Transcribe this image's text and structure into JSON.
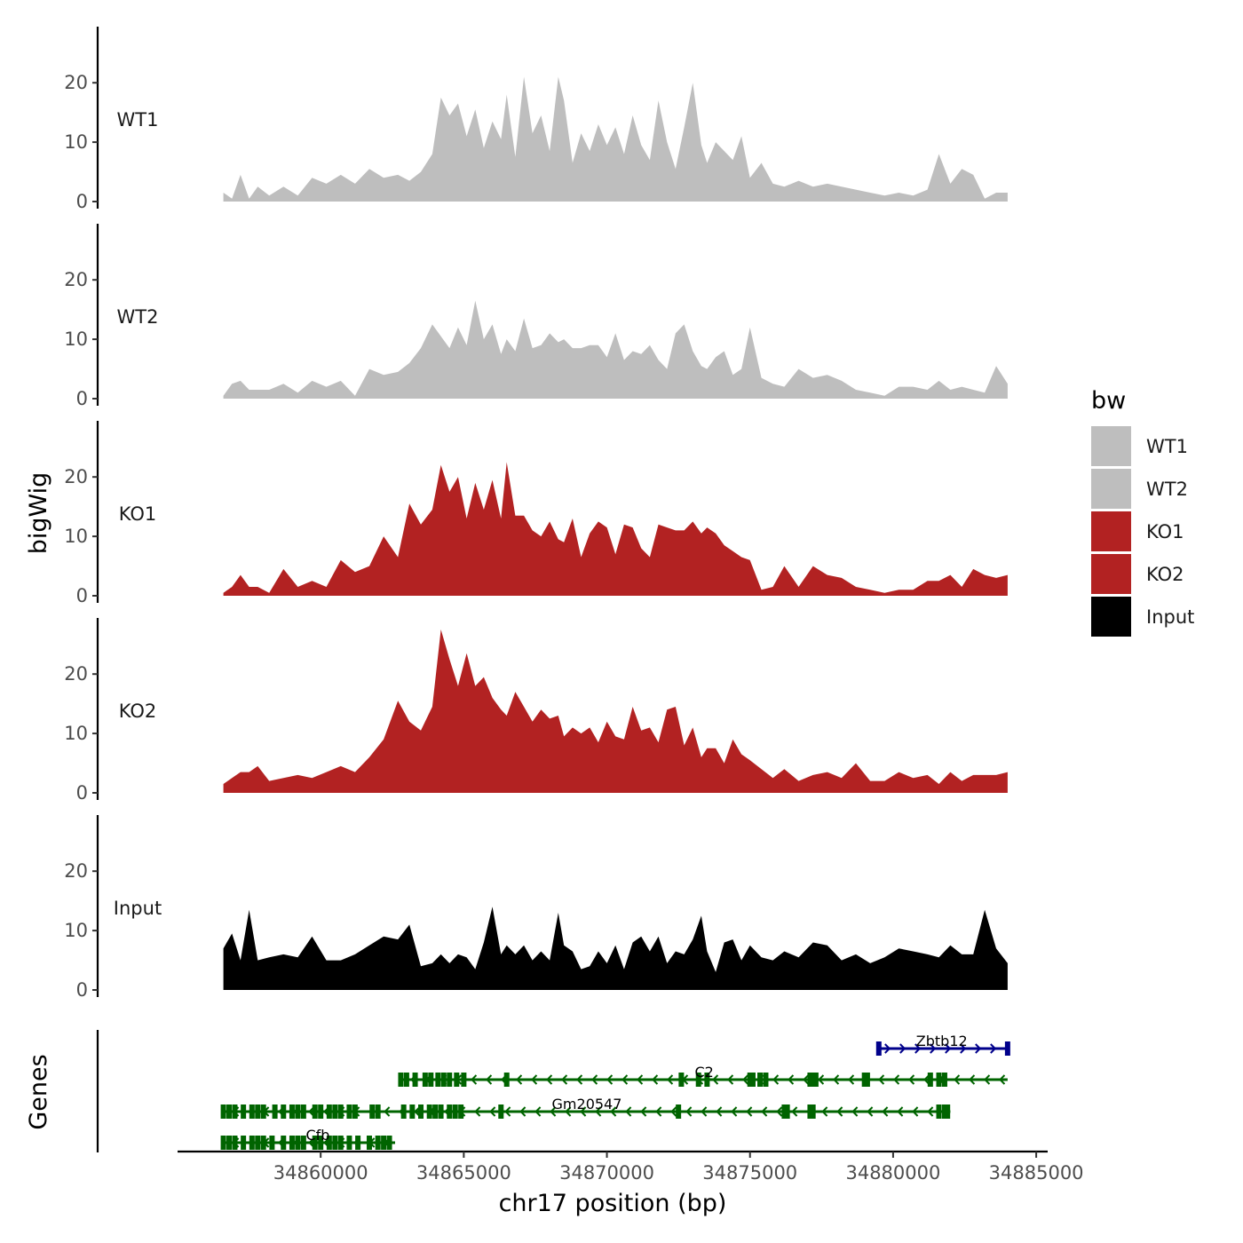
{
  "chart_data": {
    "type": "area",
    "ylabel": "bigWig",
    "genes_label": "Genes",
    "xlabel": "chr17 position (bp)",
    "xlim": [
      34855000,
      34885400
    ],
    "ylim": [
      0,
      29
    ],
    "x_ticks": [
      34860000,
      34865000,
      34870000,
      34875000,
      34880000,
      34885000
    ],
    "x_tick_labels": [
      "34860000",
      "34865000",
      "34870000",
      "34875000",
      "34880000",
      "34885000"
    ],
    "y_ticks": [
      0,
      10,
      20
    ],
    "y_tick_labels": [
      "0",
      "10",
      "20"
    ],
    "legend": {
      "title": "bw",
      "entries": [
        {
          "label": "WT1",
          "color": "#bebebe"
        },
        {
          "label": "WT2",
          "color": "#bebebe"
        },
        {
          "label": "KO1",
          "color": "#b22222"
        },
        {
          "label": "KO2",
          "color": "#b22222"
        },
        {
          "label": "Input",
          "color": "#000000"
        }
      ]
    },
    "series": [
      {
        "name": "WT1",
        "color": "#bebebe",
        "x": [
          34856600,
          34856900,
          34857200,
          34857500,
          34857800,
          34858200,
          34858700,
          34859200,
          34859700,
          34860200,
          34860700,
          34861200,
          34861700,
          34862200,
          34862700,
          34863100,
          34863500,
          34863900,
          34864200,
          34864500,
          34864800,
          34865100,
          34865400,
          34865700,
          34866000,
          34866300,
          34866500,
          34866800,
          34867100,
          34867400,
          34867700,
          34868000,
          34868300,
          34868500,
          34868800,
          34869100,
          34869400,
          34869700,
          34870000,
          34870300,
          34870600,
          34870900,
          34871200,
          34871500,
          34871800,
          34872100,
          34872400,
          34872700,
          34873000,
          34873300,
          34873500,
          34873800,
          34874100,
          34874400,
          34874700,
          34875000,
          34875400,
          34875800,
          34876200,
          34876700,
          34877200,
          34877700,
          34878200,
          34878700,
          34879200,
          34879700,
          34880200,
          34880700,
          34881200,
          34881600,
          34882000,
          34882400,
          34882800,
          34883200,
          34883600,
          34884000
        ],
        "y": [
          1.5,
          0.5,
          4.5,
          0.5,
          2.5,
          1.0,
          2.5,
          1.0,
          4.0,
          3.0,
          4.5,
          3.0,
          5.5,
          4.0,
          4.5,
          3.5,
          5.0,
          8.0,
          17.5,
          14.5,
          16.5,
          11.0,
          15.5,
          9.0,
          13.5,
          10.5,
          18.0,
          7.5,
          21.0,
          11.5,
          14.5,
          8.5,
          21.0,
          17.0,
          6.5,
          11.5,
          8.5,
          13.0,
          9.5,
          12.5,
          8.0,
          14.5,
          9.5,
          7.0,
          17.0,
          10.0,
          5.5,
          12.5,
          20.0,
          9.5,
          6.5,
          10.0,
          8.5,
          7.0,
          11.0,
          4.0,
          6.5,
          3.0,
          2.5,
          3.5,
          2.5,
          3.0,
          2.5,
          2.0,
          1.5,
          1.0,
          1.5,
          1.0,
          2.0,
          8.0,
          3.0,
          5.5,
          4.5,
          0.5,
          1.5,
          1.5
        ]
      },
      {
        "name": "WT2",
        "color": "#bebebe",
        "x": [
          34856600,
          34856900,
          34857200,
          34857500,
          34857800,
          34858200,
          34858700,
          34859200,
          34859700,
          34860200,
          34860700,
          34861200,
          34861700,
          34862200,
          34862700,
          34863100,
          34863500,
          34863900,
          34864200,
          34864500,
          34864800,
          34865100,
          34865400,
          34865700,
          34866000,
          34866300,
          34866500,
          34866800,
          34867100,
          34867400,
          34867700,
          34868000,
          34868300,
          34868500,
          34868800,
          34869100,
          34869400,
          34869700,
          34870000,
          34870300,
          34870600,
          34870900,
          34871200,
          34871500,
          34871800,
          34872100,
          34872400,
          34872700,
          34873000,
          34873300,
          34873500,
          34873800,
          34874100,
          34874400,
          34874700,
          34875000,
          34875400,
          34875800,
          34876200,
          34876700,
          34877200,
          34877700,
          34878200,
          34878700,
          34879200,
          34879700,
          34880200,
          34880700,
          34881200,
          34881600,
          34882000,
          34882400,
          34882800,
          34883200,
          34883600,
          34884000
        ],
        "y": [
          0.5,
          2.5,
          3.0,
          1.5,
          1.5,
          1.5,
          2.5,
          1.0,
          3.0,
          2.0,
          3.0,
          0.5,
          5.0,
          4.0,
          4.5,
          6.0,
          8.5,
          12.5,
          10.5,
          8.5,
          12.0,
          9.0,
          16.5,
          10.0,
          12.5,
          7.5,
          10.0,
          8.0,
          13.5,
          8.5,
          9.0,
          11.0,
          9.5,
          10.0,
          8.5,
          8.5,
          9.0,
          9.0,
          7.0,
          11.0,
          6.5,
          8.0,
          7.5,
          9.0,
          6.5,
          5.0,
          11.0,
          12.5,
          8.0,
          5.5,
          5.0,
          7.0,
          8.0,
          4.0,
          5.0,
          12.0,
          3.5,
          2.5,
          2.0,
          5.0,
          3.5,
          4.0,
          3.0,
          1.5,
          1.0,
          0.5,
          2.0,
          2.0,
          1.5,
          3.0,
          1.5,
          2.0,
          1.5,
          1.0,
          5.5,
          2.5
        ]
      },
      {
        "name": "KO1",
        "color": "#b22222",
        "x": [
          34856600,
          34856900,
          34857200,
          34857500,
          34857800,
          34858200,
          34858700,
          34859200,
          34859700,
          34860200,
          34860700,
          34861200,
          34861700,
          34862200,
          34862700,
          34863100,
          34863500,
          34863900,
          34864200,
          34864500,
          34864800,
          34865100,
          34865400,
          34865700,
          34866000,
          34866300,
          34866500,
          34866800,
          34867100,
          34867400,
          34867700,
          34868000,
          34868300,
          34868500,
          34868800,
          34869100,
          34869400,
          34869700,
          34870000,
          34870300,
          34870600,
          34870900,
          34871200,
          34871500,
          34871800,
          34872100,
          34872400,
          34872700,
          34873000,
          34873300,
          34873500,
          34873800,
          34874100,
          34874400,
          34874700,
          34875000,
          34875400,
          34875800,
          34876200,
          34876700,
          34877200,
          34877700,
          34878200,
          34878700,
          34879200,
          34879700,
          34880200,
          34880700,
          34881200,
          34881600,
          34882000,
          34882400,
          34882800,
          34883200,
          34883600,
          34884000
        ],
        "y": [
          0.5,
          1.5,
          3.5,
          1.5,
          1.5,
          0.5,
          4.5,
          1.5,
          2.5,
          1.5,
          6.0,
          4.0,
          5.0,
          10.0,
          6.5,
          15.5,
          12.0,
          14.5,
          22.0,
          17.5,
          20.0,
          13.0,
          19.0,
          14.5,
          19.5,
          13.0,
          22.5,
          13.5,
          13.5,
          11.0,
          10.0,
          12.5,
          9.5,
          9.0,
          13.0,
          6.5,
          10.5,
          12.5,
          11.5,
          7.0,
          12.0,
          11.5,
          8.0,
          6.5,
          12.0,
          11.5,
          11.0,
          11.0,
          12.5,
          10.5,
          11.5,
          10.5,
          8.5,
          7.5,
          6.5,
          6.0,
          1.0,
          1.5,
          5.0,
          1.5,
          5.0,
          3.5,
          3.0,
          1.5,
          1.0,
          0.5,
          1.0,
          1.0,
          2.5,
          2.5,
          3.5,
          1.5,
          4.5,
          3.5,
          3.0,
          3.5
        ]
      },
      {
        "name": "KO2",
        "color": "#b22222",
        "x": [
          34856600,
          34856900,
          34857200,
          34857500,
          34857800,
          34858200,
          34858700,
          34859200,
          34859700,
          34860200,
          34860700,
          34861200,
          34861700,
          34862200,
          34862700,
          34863100,
          34863500,
          34863900,
          34864200,
          34864500,
          34864800,
          34865100,
          34865400,
          34865700,
          34866000,
          34866300,
          34866500,
          34866800,
          34867100,
          34867400,
          34867700,
          34868000,
          34868300,
          34868500,
          34868800,
          34869100,
          34869400,
          34869700,
          34870000,
          34870300,
          34870600,
          34870900,
          34871200,
          34871500,
          34871800,
          34872100,
          34872400,
          34872700,
          34873000,
          34873300,
          34873500,
          34873800,
          34874100,
          34874400,
          34874700,
          34875000,
          34875400,
          34875800,
          34876200,
          34876700,
          34877200,
          34877700,
          34878200,
          34878700,
          34879200,
          34879700,
          34880200,
          34880700,
          34881200,
          34881600,
          34882000,
          34882400,
          34882800,
          34883200,
          34883600,
          34884000
        ],
        "y": [
          1.5,
          2.5,
          3.5,
          3.5,
          4.5,
          2.0,
          2.5,
          3.0,
          2.5,
          3.5,
          4.5,
          3.5,
          6.0,
          9.0,
          15.5,
          12.0,
          10.5,
          14.5,
          27.5,
          22.5,
          18.0,
          23.5,
          18.0,
          19.5,
          16.0,
          14.0,
          13.0,
          17.0,
          14.5,
          12.0,
          14.0,
          12.5,
          13.0,
          9.5,
          11.0,
          10.0,
          11.0,
          8.5,
          12.0,
          9.5,
          9.0,
          14.5,
          10.5,
          11.0,
          8.5,
          14.0,
          14.5,
          8.0,
          11.0,
          6.0,
          7.5,
          7.5,
          5.0,
          9.0,
          6.5,
          5.5,
          4.0,
          2.5,
          4.0,
          2.0,
          3.0,
          3.5,
          2.5,
          5.0,
          2.0,
          2.0,
          3.5,
          2.5,
          3.0,
          1.5,
          3.5,
          2.0,
          3.0,
          3.0,
          3.0,
          3.5
        ]
      },
      {
        "name": "Input",
        "color": "#000000",
        "x": [
          34856600,
          34856900,
          34857200,
          34857500,
          34857800,
          34858200,
          34858700,
          34859200,
          34859700,
          34860200,
          34860700,
          34861200,
          34861700,
          34862200,
          34862700,
          34863100,
          34863500,
          34863900,
          34864200,
          34864500,
          34864800,
          34865100,
          34865400,
          34865700,
          34866000,
          34866300,
          34866500,
          34866800,
          34867100,
          34867400,
          34867700,
          34868000,
          34868300,
          34868500,
          34868800,
          34869100,
          34869400,
          34869700,
          34870000,
          34870300,
          34870600,
          34870900,
          34871200,
          34871500,
          34871800,
          34872100,
          34872400,
          34872700,
          34873000,
          34873300,
          34873500,
          34873800,
          34874100,
          34874400,
          34874700,
          34875000,
          34875400,
          34875800,
          34876200,
          34876700,
          34877200,
          34877700,
          34878200,
          34878700,
          34879200,
          34879700,
          34880200,
          34880700,
          34881200,
          34881600,
          34882000,
          34882400,
          34882800,
          34883200,
          34883600,
          34884000
        ],
        "y": [
          7.0,
          9.5,
          5.0,
          13.5,
          5.0,
          5.5,
          6.0,
          5.5,
          9.0,
          5.0,
          5.0,
          6.0,
          7.5,
          9.0,
          8.5,
          11.0,
          4.0,
          4.5,
          6.0,
          4.5,
          6.0,
          5.5,
          3.5,
          8.0,
          14.0,
          6.0,
          7.5,
          6.0,
          7.5,
          5.0,
          6.5,
          5.0,
          13.0,
          7.5,
          6.5,
          3.5,
          4.0,
          6.5,
          4.5,
          7.5,
          3.5,
          8.0,
          9.0,
          6.5,
          9.0,
          4.5,
          6.5,
          6.0,
          8.5,
          12.5,
          6.5,
          3.0,
          8.0,
          8.5,
          5.0,
          7.5,
          5.5,
          5.0,
          6.5,
          5.5,
          8.0,
          7.5,
          5.0,
          6.0,
          4.5,
          5.5,
          7.0,
          6.5,
          6.0,
          5.5,
          7.5,
          6.0,
          6.0,
          13.5,
          7.0,
          4.5
        ]
      }
    ],
    "genes": [
      {
        "name": "Zbtb12",
        "strand": "+",
        "color": "#00008b",
        "start": 34879500,
        "end": 34884000,
        "exons": [
          34879500,
          34884000
        ]
      },
      {
        "name": "C2",
        "strand": "-",
        "color": "#006400",
        "start": 34862800,
        "end": 34884000,
        "exons": [
          34862800,
          34863000,
          34863300,
          34863650,
          34863850,
          34864100,
          34864300,
          34864500,
          34864750,
          34865000,
          34866500,
          34872600,
          34873200,
          34873500,
          34875000,
          34875100,
          34875350,
          34875550,
          34877100,
          34877200,
          34877300,
          34879000,
          34879100,
          34881300,
          34881600,
          34881800
        ]
      },
      {
        "name": "Gm20547",
        "strand": "-",
        "color": "#006400",
        "start": 34856600,
        "end": 34882000,
        "exons": [
          34856600,
          34856800,
          34857000,
          34857300,
          34857600,
          34857800,
          34858000,
          34858400,
          34858700,
          34859000,
          34859200,
          34859400,
          34859800,
          34860000,
          34860300,
          34860500,
          34860700,
          34861000,
          34861200,
          34861800,
          34862000,
          34862900,
          34863200,
          34863500,
          34863800,
          34864000,
          34864200,
          34864500,
          34864700,
          34864900,
          34866300,
          34872500,
          34876200,
          34876300,
          34877100,
          34877200,
          34881600,
          34881800,
          34881900
        ]
      },
      {
        "name": "Cfb",
        "strand": "-",
        "color": "#006400",
        "start": 34856600,
        "end": 34862600,
        "exons": [
          34856600,
          34856800,
          34857000,
          34857300,
          34857600,
          34857800,
          34858000,
          34858300,
          34858700,
          34859000,
          34859200,
          34859400,
          34859800,
          34860000,
          34860300,
          34860500,
          34860700,
          34861000,
          34861300,
          34861700,
          34862000,
          34862200,
          34862400
        ]
      }
    ]
  }
}
